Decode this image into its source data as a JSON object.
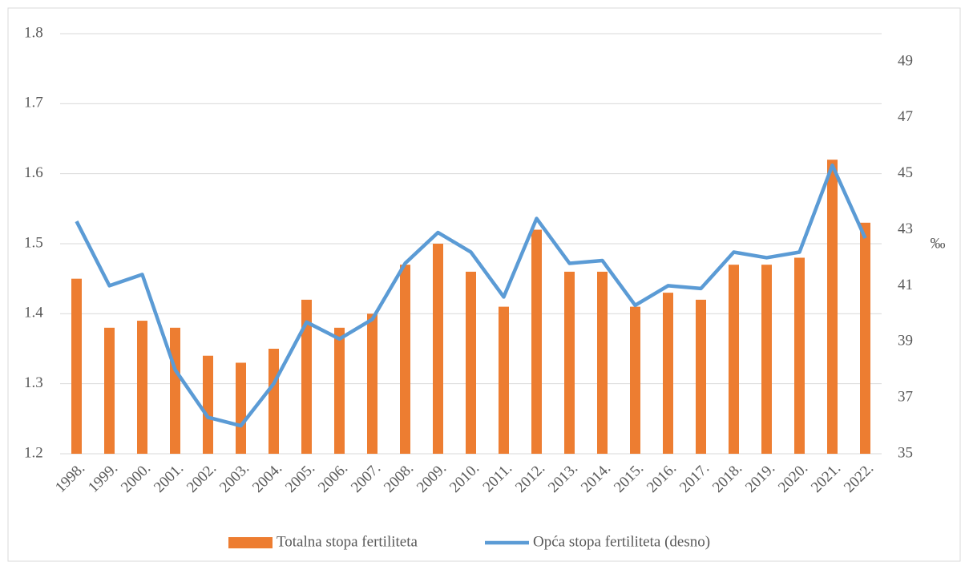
{
  "chart_data": {
    "type": "bar_line",
    "categories": [
      "1998.",
      "1999.",
      "2000.",
      "2001.",
      "2002.",
      "2003.",
      "2004.",
      "2005.",
      "2006.",
      "2007.",
      "2008.",
      "2009.",
      "2010.",
      "2011.",
      "2012.",
      "2013.",
      "2014.",
      "2015.",
      "2016.",
      "2017.",
      "2018.",
      "2019.",
      "2020.",
      "2021.",
      "2022."
    ],
    "series": [
      {
        "name": "Totalna stopa fertiliteta",
        "type": "bar",
        "color": "#ed7d31",
        "values": [
          1.45,
          1.38,
          1.39,
          1.38,
          1.34,
          1.33,
          1.35,
          1.42,
          1.38,
          1.4,
          1.47,
          1.5,
          1.46,
          1.41,
          1.52,
          1.46,
          1.46,
          1.41,
          1.43,
          1.42,
          1.47,
          1.47,
          1.48,
          1.62,
          1.53
        ]
      },
      {
        "name": "Opća stopa fertiliteta (desno)",
        "type": "line",
        "axis": "y2",
        "color": "#5b9bd5",
        "values": [
          43.3,
          41.0,
          41.4,
          38.0,
          36.3,
          36.0,
          37.5,
          39.7,
          39.1,
          39.8,
          41.8,
          42.9,
          42.2,
          40.6,
          43.4,
          41.8,
          41.9,
          40.3,
          41.0,
          40.9,
          42.2,
          42.0,
          42.2,
          45.3,
          42.7
        ]
      }
    ],
    "ylim": [
      1.2,
      1.8
    ],
    "yticks": [
      1.2,
      1.3,
      1.4,
      1.5,
      1.6,
      1.7,
      1.8
    ],
    "y2lim": [
      35,
      50
    ],
    "y2ticks": [
      35,
      37,
      39,
      41,
      43,
      45,
      47,
      49
    ],
    "y2label": "‰",
    "grid": true,
    "legend": "bottom"
  }
}
